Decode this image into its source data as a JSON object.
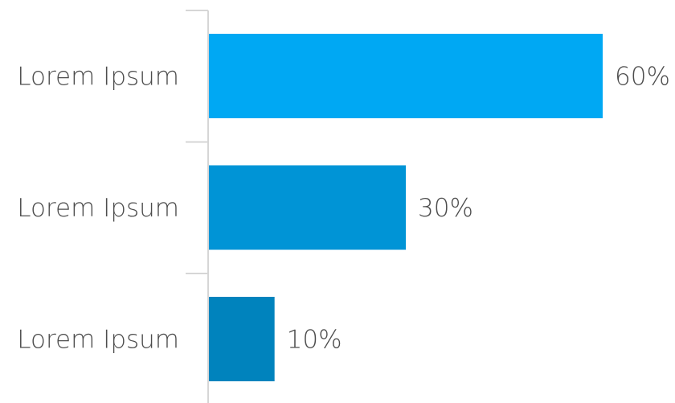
{
  "chart_data": {
    "type": "bar",
    "orientation": "horizontal",
    "categories": [
      "Lorem Ipsum",
      "Lorem Ipsum",
      "Lorem Ipsum"
    ],
    "values": [
      60,
      30,
      10
    ],
    "value_labels": [
      "60%",
      "30%",
      "10%"
    ],
    "value_suffix": "%",
    "xlim": [
      0,
      60
    ],
    "title": "",
    "xlabel": "",
    "ylabel": "",
    "grid": false,
    "legend": "none",
    "colors": [
      "#00a8f3",
      "#0094d6",
      "#0083bd"
    ],
    "axis_color": "#d6d6d6",
    "label_color": "#4d4d4d"
  }
}
